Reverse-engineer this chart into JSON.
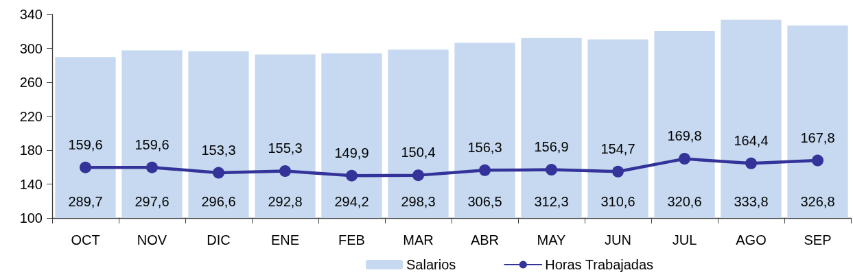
{
  "chart_data": {
    "type": "bar",
    "categories": [
      "OCT",
      "NOV",
      "DIC",
      "ENE",
      "FEB",
      "MAR",
      "ABR",
      "MAY",
      "JUN",
      "JUL",
      "AGO",
      "SEP"
    ],
    "series": [
      {
        "name": "Salarios",
        "color": "#c6d9f0",
        "values": [
          289.7,
          297.6,
          296.6,
          292.8,
          294.2,
          298.3,
          306.5,
          312.3,
          310.6,
          320.6,
          333.8,
          326.8
        ],
        "value_labels": [
          "289,7",
          "297,6",
          "296,6",
          "292,8",
          "294,2",
          "298,3",
          "306,5",
          "312,3",
          "310,6",
          "320,6",
          "333,8",
          "326,8"
        ]
      },
      {
        "name": "Horas Trabajadas",
        "type": "line",
        "color": "#333399",
        "values": [
          159.6,
          159.6,
          153.3,
          155.3,
          149.9,
          150.4,
          156.3,
          156.9,
          154.7,
          169.8,
          164.4,
          167.8
        ],
        "value_labels": [
          "159,6",
          "159,6",
          "153,3",
          "155,3",
          "149,9",
          "150,4",
          "156,3",
          "156,9",
          "154,7",
          "169,8",
          "164,4",
          "167,8"
        ]
      }
    ],
    "ylim": [
      100,
      340
    ],
    "yticks": [
      100,
      140,
      180,
      220,
      260,
      300,
      340
    ],
    "grid": false,
    "legend": "bottom",
    "marker": "circle",
    "line_style": "solid"
  }
}
